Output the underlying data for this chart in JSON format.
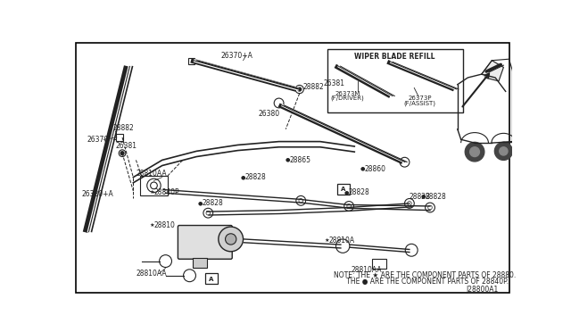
{
  "bg_color": "#ffffff",
  "border_color": "#000000",
  "note_line1": "NOTE: THE ★ ARE THE COMPONENT PARTS OF 28880.",
  "note_line2": "      THE ● ARE THE COMPONENT PARTS OF 28840P.",
  "diagram_code": "J28800A1",
  "wiper_blade_refill_label": "WIPER BLADE REFILL"
}
